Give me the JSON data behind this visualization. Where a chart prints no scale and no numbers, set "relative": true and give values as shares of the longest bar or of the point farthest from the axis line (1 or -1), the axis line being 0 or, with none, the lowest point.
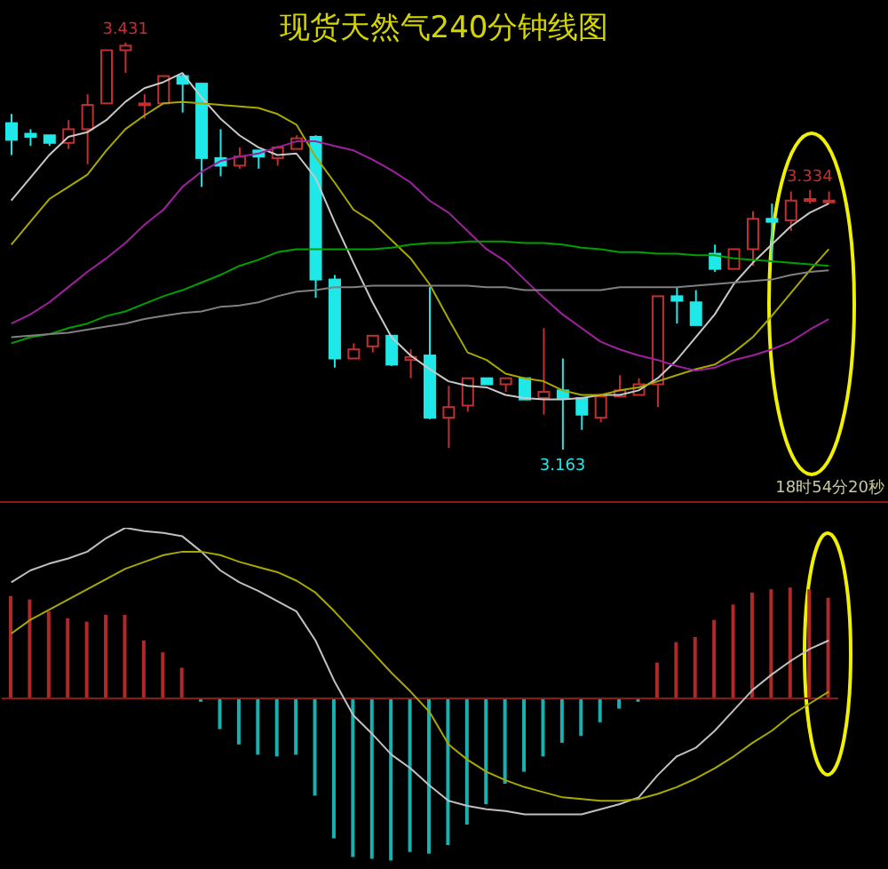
{
  "chart_data": [
    {
      "type": "candlestick",
      "title": "现货天然气240分钟线图",
      "categories": [
        null,
        null,
        null,
        null,
        null,
        null,
        null,
        null,
        null,
        null,
        null,
        null,
        null,
        null,
        null,
        null,
        null,
        null,
        null,
        null,
        null,
        null,
        null,
        null,
        null,
        null,
        null,
        null,
        null,
        null,
        null,
        null,
        null,
        null,
        null,
        null,
        null,
        null,
        null,
        null,
        null,
        null,
        null,
        null
      ],
      "ohlc": [
        [
          3.378,
          3.384,
          3.357,
          3.367
        ],
        [
          3.371,
          3.374,
          3.363,
          3.369
        ],
        [
          3.37,
          3.37,
          3.363,
          3.365
        ],
        [
          3.365,
          3.38,
          3.361,
          3.374
        ],
        [
          3.374,
          3.397,
          3.351,
          3.39
        ],
        [
          3.391,
          3.426,
          3.391,
          3.426
        ],
        [
          3.426,
          3.431,
          3.411,
          3.429
        ],
        [
          3.39,
          3.397,
          3.381,
          3.391
        ],
        [
          3.391,
          3.409,
          3.391,
          3.409
        ],
        [
          3.409,
          3.41,
          3.385,
          3.404
        ],
        [
          3.404,
          3.404,
          3.336,
          3.355
        ],
        [
          3.355,
          3.374,
          3.343,
          3.35
        ],
        [
          3.35,
          3.362,
          3.348,
          3.356
        ],
        [
          3.36,
          3.36,
          3.348,
          3.356
        ],
        [
          3.355,
          3.363,
          3.35,
          3.362
        ],
        [
          3.361,
          3.37,
          3.361,
          3.368
        ],
        [
          3.369,
          3.37,
          3.263,
          3.275
        ],
        [
          3.275,
          3.278,
          3.217,
          3.223
        ],
        [
          3.223,
          3.233,
          3.223,
          3.229
        ],
        [
          3.231,
          3.238,
          3.227,
          3.238
        ],
        [
          3.238,
          3.238,
          3.218,
          3.219
        ],
        [
          3.222,
          3.229,
          3.21,
          3.224
        ],
        [
          3.225,
          3.27,
          3.183,
          3.184
        ],
        [
          3.184,
          3.205,
          3.164,
          3.191
        ],
        [
          3.192,
          3.21,
          3.188,
          3.21
        ],
        [
          3.21,
          3.21,
          3.206,
          3.206
        ],
        [
          3.206,
          3.21,
          3.201,
          3.21
        ],
        [
          3.21,
          3.21,
          3.196,
          3.196
        ],
        [
          3.197,
          3.243,
          3.186,
          3.201
        ],
        [
          3.202,
          3.223,
          3.163,
          3.197
        ],
        [
          3.197,
          3.197,
          3.176,
          3.186
        ],
        [
          3.184,
          3.198,
          3.181,
          3.198
        ],
        [
          3.198,
          3.212,
          3.198,
          3.202
        ],
        [
          3.199,
          3.21,
          3.199,
          3.206
        ],
        [
          3.206,
          3.264,
          3.191,
          3.264
        ],
        [
          3.264,
          3.27,
          3.246,
          3.261
        ],
        [
          3.26,
          3.268,
          3.245,
          3.245
        ],
        [
          3.292,
          3.298,
          3.28,
          3.282
        ],
        [
          3.282,
          3.295,
          3.282,
          3.295
        ],
        [
          3.295,
          3.32,
          3.284,
          3.315
        ],
        [
          3.315,
          3.325,
          3.287,
          3.313
        ],
        [
          3.314,
          3.333,
          3.307,
          3.327
        ],
        [
          3.327,
          3.334,
          3.325,
          3.328
        ],
        [
          3.326,
          3.333,
          3.325,
          3.327
        ]
      ],
      "colors": [
        "#1ee8e8",
        "#1ee8e8",
        "#1ee8e8",
        "#c03030",
        "#c03030",
        "#c03030",
        "#c03030",
        "#c03030",
        "#c03030",
        "#1ee8e8",
        "#1ee8e8",
        "#1ee8e8",
        "#c03030",
        "#1ee8e8",
        "#c03030",
        "#c03030",
        "#1ee8e8",
        "#1ee8e8",
        "#c03030",
        "#c03030",
        "#1ee8e8",
        "#c03030",
        "#1ee8e8",
        "#c03030",
        "#c03030",
        "#1ee8e8",
        "#c03030",
        "#1ee8e8",
        "#c03030",
        "#1ee8e8",
        "#1ee8e8",
        "#c03030",
        "#c03030",
        "#c03030",
        "#c03030",
        "#1ee8e8",
        "#1ee8e8",
        "#1ee8e8",
        "#c03030",
        "#c03030",
        "#1ee8e8",
        "#c03030",
        "#c03030",
        "#c03030"
      ],
      "series": [
        {
          "type": "line",
          "color": "#c8c8c8",
          "values": [
            3.327,
            3.342,
            3.357,
            3.369,
            3.372,
            3.38,
            3.392,
            3.401,
            3.405,
            3.411,
            3.395,
            3.381,
            3.37,
            3.362,
            3.357,
            3.358,
            3.342,
            3.313,
            3.286,
            3.26,
            3.237,
            3.225,
            3.216,
            3.208,
            3.205,
            3.204,
            3.199,
            3.197,
            3.196,
            3.196,
            3.197,
            3.199,
            3.199,
            3.202,
            3.21,
            3.222,
            3.237,
            3.252,
            3.272,
            3.286,
            3.298,
            3.31,
            3.319,
            3.325
          ]
        },
        {
          "type": "line",
          "color": "#a8a800",
          "values": [
            3.298,
            3.313,
            3.328,
            3.336,
            3.344,
            3.36,
            3.374,
            3.383,
            3.391,
            3.392,
            3.391,
            3.39,
            3.389,
            3.388,
            3.384,
            3.377,
            3.356,
            3.339,
            3.321,
            3.313,
            3.301,
            3.289,
            3.272,
            3.249,
            3.227,
            3.222,
            3.213,
            3.21,
            3.208,
            3.202,
            3.199,
            3.199,
            3.202,
            3.204,
            3.208,
            3.212,
            3.216,
            3.219,
            3.227,
            3.237,
            3.251,
            3.266,
            3.281,
            3.295
          ]
        },
        {
          "type": "line",
          "color": "#a020a0",
          "values": [
            3.246,
            3.252,
            3.26,
            3.27,
            3.28,
            3.289,
            3.299,
            3.311,
            3.321,
            3.336,
            3.346,
            3.353,
            3.356,
            3.358,
            3.362,
            3.366,
            3.366,
            3.363,
            3.36,
            3.354,
            3.347,
            3.339,
            3.327,
            3.319,
            3.307,
            3.295,
            3.287,
            3.275,
            3.263,
            3.252,
            3.243,
            3.234,
            3.229,
            3.225,
            3.222,
            3.218,
            3.215,
            3.217,
            3.222,
            3.225,
            3.229,
            3.234,
            3.242,
            3.249
          ]
        },
        {
          "type": "line",
          "color": "#00a000",
          "values": [
            3.233,
            3.237,
            3.239,
            3.243,
            3.246,
            3.251,
            3.254,
            3.259,
            3.264,
            3.268,
            3.273,
            3.278,
            3.284,
            3.288,
            3.293,
            3.295,
            3.295,
            3.295,
            3.295,
            3.295,
            3.296,
            3.298,
            3.299,
            3.299,
            3.3,
            3.3,
            3.3,
            3.299,
            3.299,
            3.298,
            3.296,
            3.295,
            3.293,
            3.293,
            3.292,
            3.292,
            3.291,
            3.291,
            3.289,
            3.288,
            3.287,
            3.286,
            3.285,
            3.284
          ]
        },
        {
          "type": "line",
          "color": "#808080",
          "values": [
            3.237,
            3.238,
            3.239,
            3.24,
            3.242,
            3.244,
            3.246,
            3.249,
            3.251,
            3.253,
            3.254,
            3.257,
            3.258,
            3.26,
            3.264,
            3.267,
            3.268,
            3.27,
            3.27,
            3.271,
            3.271,
            3.271,
            3.271,
            3.271,
            3.271,
            3.27,
            3.27,
            3.268,
            3.268,
            3.268,
            3.268,
            3.268,
            3.27,
            3.27,
            3.27,
            3.27,
            3.271,
            3.272,
            3.273,
            3.274,
            3.275,
            3.278,
            3.28,
            3.281
          ]
        }
      ],
      "annotations": [
        {
          "text": "3.431",
          "y": 3.431
        },
        {
          "text": "3.334",
          "y": 3.334
        },
        {
          "text": "3.163",
          "y": 3.163
        },
        "18时54分20秒"
      ]
    },
    {
      "type": "bar",
      "relative": true,
      "ref_lines": [
        {
          "axis": "y",
          "value": 0,
          "color": "#8a1a1a"
        }
      ],
      "categories": [
        null,
        null,
        null,
        null,
        null,
        null,
        null,
        null,
        null,
        null,
        null,
        null,
        null,
        null,
        null,
        null,
        null,
        null,
        null,
        null,
        null,
        null,
        null,
        null,
        null,
        null,
        null,
        null,
        null,
        null,
        null,
        null,
        null,
        null,
        null,
        null,
        null,
        null,
        null,
        null,
        null,
        null,
        null,
        null
      ],
      "series": [
        {
          "type": "bar",
          "colors": [
            "#b02828",
            "#b02828",
            "#b02828",
            "#b02828",
            "#b02828",
            "#b02828",
            "#b02828",
            "#b02828",
            "#b02828",
            "#b02828",
            "#18b0b0",
            "#18b0b0",
            "#18b0b0",
            "#18b0b0",
            "#18b0b0",
            "#18b0b0",
            "#18b0b0",
            "#18b0b0",
            "#18b0b0",
            "#18b0b0",
            "#18b0b0",
            "#18b0b0",
            "#18b0b0",
            "#18b0b0",
            "#18b0b0",
            "#18b0b0",
            "#18b0b0",
            "#18b0b0",
            "#18b0b0",
            "#18b0b0",
            "#18b0b0",
            "#18b0b0",
            "#18b0b0",
            "#18b0b0",
            "#b02828",
            "#b02828",
            "#b02828",
            "#b02828",
            "#b02828",
            "#b02828",
            "#b02828",
            "#b02828",
            "#b02828",
            "#b02828"
          ],
          "values": [
            0.6,
            0.58,
            0.51,
            0.47,
            0.45,
            0.49,
            0.49,
            0.34,
            0.27,
            0.18,
            -0.02,
            -0.18,
            -0.27,
            -0.33,
            -0.34,
            -0.33,
            -0.57,
            -0.82,
            -0.93,
            -0.94,
            -0.95,
            -0.9,
            -0.91,
            -0.86,
            -0.74,
            -0.62,
            -0.5,
            -0.43,
            -0.34,
            -0.26,
            -0.22,
            -0.14,
            -0.06,
            -0.02,
            0.21,
            0.33,
            0.36,
            0.46,
            0.55,
            0.62,
            0.64,
            0.65,
            0.64,
            0.59
          ]
        },
        {
          "type": "line",
          "color": "#c0c0c0",
          "values": [
            0.68,
            0.75,
            0.79,
            0.82,
            0.86,
            0.94,
            1,
            0.98,
            0.97,
            0.95,
            0.86,
            0.75,
            0.68,
            0.63,
            0.57,
            0.51,
            0.34,
            0.1,
            -0.1,
            -0.21,
            -0.33,
            -0.41,
            -0.51,
            -0.6,
            -0.63,
            -0.65,
            -0.66,
            -0.68,
            -0.68,
            -0.68,
            -0.68,
            -0.65,
            -0.62,
            -0.58,
            -0.45,
            -0.34,
            -0.29,
            -0.19,
            -0.07,
            0.05,
            0.14,
            0.22,
            0.29,
            0.34
          ]
        },
        {
          "type": "line",
          "color": "#a8a800",
          "values": [
            0.38,
            0.46,
            0.52,
            0.58,
            0.64,
            0.7,
            0.76,
            0.8,
            0.84,
            0.86,
            0.86,
            0.84,
            0.8,
            0.77,
            0.74,
            0.69,
            0.62,
            0.51,
            0.39,
            0.27,
            0.15,
            0.04,
            -0.08,
            -0.27,
            -0.36,
            -0.43,
            -0.48,
            -0.52,
            -0.55,
            -0.58,
            -0.59,
            -0.6,
            -0.6,
            -0.59,
            -0.56,
            -0.52,
            -0.47,
            -0.41,
            -0.34,
            -0.26,
            -0.19,
            -0.1,
            -0.03,
            0.04
          ]
        }
      ]
    }
  ]
}
